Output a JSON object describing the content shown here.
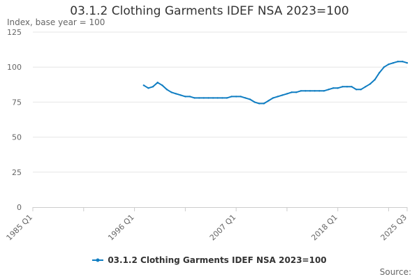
{
  "chart_data": {
    "type": "line",
    "title": "03.1.2 Clothing Garments IDEF NSA 2023=100",
    "ylabel": "Index, base year = 100",
    "xlabel": "",
    "ylim": [
      0,
      125
    ],
    "yticks": [
      0,
      25,
      50,
      75,
      100,
      125
    ],
    "x_start": "1985 Q1",
    "x_end": "2025 Q3",
    "xticks": [
      "1985 Q1",
      "1996 Q1",
      "2007 Q1",
      "2018 Q1",
      "2025 Q3"
    ],
    "grid": true,
    "legend_position": "bottom",
    "series": [
      {
        "name": "03.1.2 Clothing Garments IDEF NSA 2023=100",
        "color": "#0f7dc2",
        "points": [
          [
            "1997 Q1",
            87
          ],
          [
            "1997 Q3",
            85
          ],
          [
            "1998 Q1",
            86
          ],
          [
            "1998 Q3",
            89
          ],
          [
            "1999 Q1",
            87
          ],
          [
            "1999 Q3",
            84
          ],
          [
            "2000 Q1",
            82
          ],
          [
            "2000 Q3",
            81
          ],
          [
            "2001 Q1",
            80
          ],
          [
            "2001 Q3",
            79
          ],
          [
            "2002 Q1",
            79
          ],
          [
            "2002 Q3",
            78
          ],
          [
            "2003 Q1",
            78
          ],
          [
            "2003 Q3",
            78
          ],
          [
            "2004 Q1",
            78
          ],
          [
            "2004 Q3",
            78
          ],
          [
            "2005 Q1",
            78
          ],
          [
            "2005 Q3",
            78
          ],
          [
            "2006 Q1",
            78
          ],
          [
            "2006 Q3",
            79
          ],
          [
            "2007 Q1",
            79
          ],
          [
            "2007 Q3",
            79
          ],
          [
            "2008 Q1",
            78
          ],
          [
            "2008 Q3",
            77
          ],
          [
            "2009 Q1",
            75
          ],
          [
            "2009 Q3",
            74
          ],
          [
            "2010 Q1",
            74
          ],
          [
            "2010 Q3",
            76
          ],
          [
            "2011 Q1",
            78
          ],
          [
            "2011 Q3",
            79
          ],
          [
            "2012 Q1",
            80
          ],
          [
            "2012 Q3",
            81
          ],
          [
            "2013 Q1",
            82
          ],
          [
            "2013 Q3",
            82
          ],
          [
            "2014 Q1",
            83
          ],
          [
            "2014 Q3",
            83
          ],
          [
            "2015 Q1",
            83
          ],
          [
            "2015 Q3",
            83
          ],
          [
            "2016 Q1",
            83
          ],
          [
            "2016 Q3",
            83
          ],
          [
            "2017 Q1",
            84
          ],
          [
            "2017 Q3",
            85
          ],
          [
            "2018 Q1",
            85
          ],
          [
            "2018 Q3",
            86
          ],
          [
            "2019 Q1",
            86
          ],
          [
            "2019 Q3",
            86
          ],
          [
            "2020 Q1",
            84
          ],
          [
            "2020 Q3",
            84
          ],
          [
            "2021 Q1",
            86
          ],
          [
            "2021 Q3",
            88
          ],
          [
            "2022 Q1",
            91
          ],
          [
            "2022 Q3",
            96
          ],
          [
            "2023 Q1",
            100
          ],
          [
            "2023 Q3",
            102
          ],
          [
            "2024 Q1",
            103
          ],
          [
            "2024 Q3",
            104
          ],
          [
            "2025 Q1",
            104
          ],
          [
            "2025 Q3",
            103
          ]
        ]
      }
    ],
    "source_label": "Source:"
  }
}
